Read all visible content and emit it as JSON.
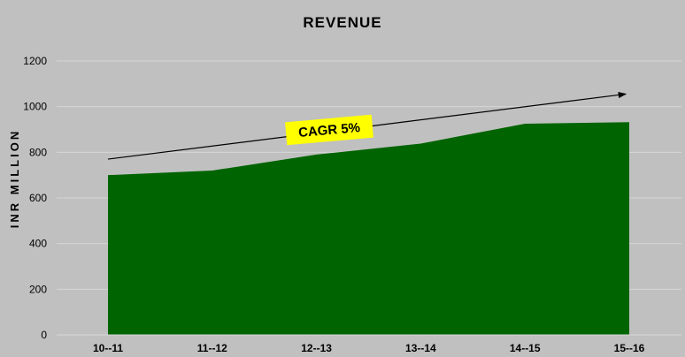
{
  "chart_data": {
    "type": "area",
    "title": "REVENUE",
    "xlabel": "",
    "ylabel": "INR  MILLION",
    "categories": [
      "10--11",
      "11--12",
      "12--13",
      "13--14",
      "14--15",
      "15--16"
    ],
    "series": [
      {
        "values": [
          700,
          720,
          790,
          838,
          925,
          932
        ]
      }
    ],
    "ylim": [
      0,
      1200
    ],
    "yticks": [
      0,
      200,
      400,
      600,
      800,
      1000,
      1200
    ],
    "grid": true,
    "legend": "none",
    "colors": {
      "area": "#006400",
      "background": "#c0c0c0",
      "grid": "#d6d6d6",
      "callout": "#ffff00"
    },
    "annotations": [
      {
        "type": "arrow",
        "from": {
          "category": "10--11",
          "value": 770
        },
        "to": {
          "category": "15--16",
          "value": 1055
        }
      },
      {
        "type": "callout",
        "text": "CAGR 5%"
      }
    ]
  }
}
